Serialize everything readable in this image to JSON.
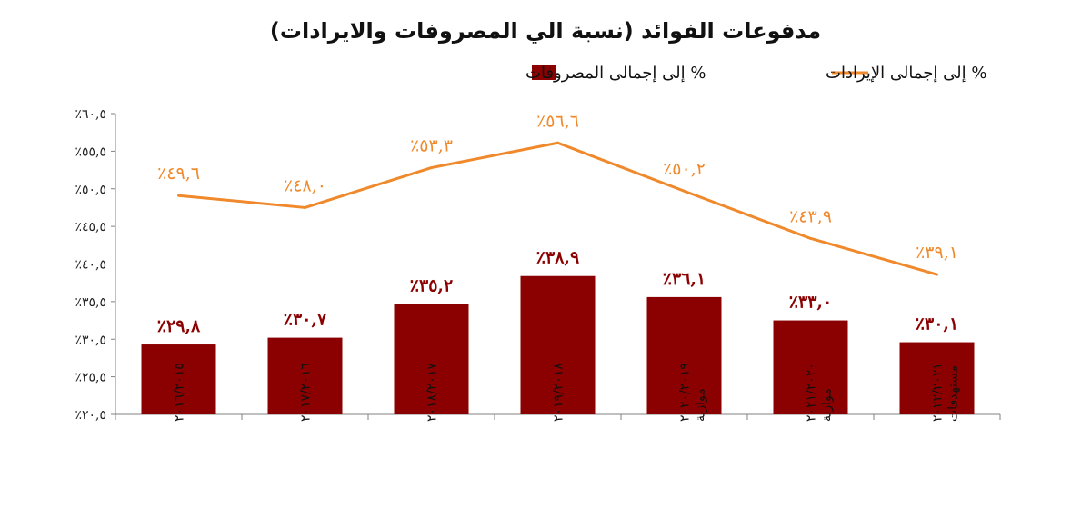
{
  "chart_data": {
    "type": "bar",
    "title": "مدفوعات الفوائد (نسبة الي المصروفات والايرادات)",
    "categories": [
      [
        "٢٠١٦/٢٠١٥"
      ],
      [
        "٢٠١٧/٢٠١٦"
      ],
      [
        "٢٠١٨/٢٠١٧"
      ],
      [
        "٢٠١٩/٢٠١٨"
      ],
      [
        "٢٠٢٠/٢٠١٩",
        "موازنة"
      ],
      [
        "٢٠٢١/٢٠٢٠",
        "موازنة"
      ],
      [
        "٢٠٢٢/٢٠٢١",
        "مستهدفات"
      ]
    ],
    "y_ticks": [
      "٪٢٠,٥",
      "٪٢٥,٥",
      "٪٣٠,٥",
      "٪٣٥,٥",
      "٪٤٠,٥",
      "٪٤٥,٥",
      "٪٥٠,٥",
      "٪٥٥,٥",
      "٪٦٠,٥"
    ],
    "ylim": [
      20.5,
      60.5
    ],
    "grid": false,
    "legend_position": "top",
    "series": [
      {
        "name": "% إلى إجمالى المصروفات",
        "kind": "bar",
        "color": "#8B0000",
        "values": [
          29.8,
          30.7,
          35.2,
          38.9,
          36.1,
          33.0,
          30.1
        ],
        "labels": [
          "٪٢٩,٨",
          "٪٣٠,٧",
          "٪٣٥,٢",
          "٪٣٨,٩",
          "٪٣٦,١",
          "٪٣٣,٠",
          "٪٣٠,١"
        ]
      },
      {
        "name": "% إلى إجمالى الإيرادات",
        "kind": "line",
        "color": "#F0892B",
        "values": [
          49.6,
          48.0,
          53.3,
          56.6,
          50.2,
          43.9,
          39.1
        ],
        "labels": [
          "٪٤٩,٦",
          "٪٤٨,٠",
          "٪٥٣,٣",
          "٪٥٦,٦",
          "٪٥٠,٢",
          "٪٤٣,٩",
          "٪٣٩,١"
        ]
      }
    ]
  }
}
